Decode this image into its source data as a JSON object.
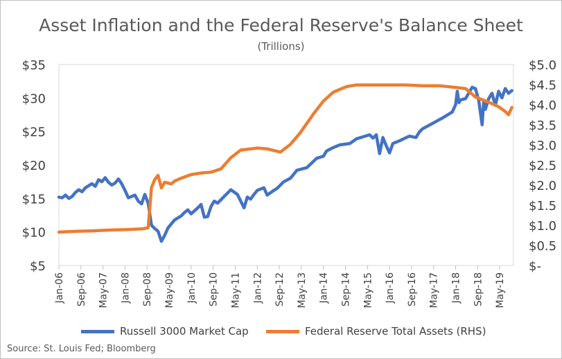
{
  "chart_data": {
    "type": "line",
    "title": "Asset Inflation and the Federal Reserve's Balance Sheet",
    "subtitle": "(Trillions)",
    "source": "Source: St. Louis Fed; Bloomberg",
    "x_tick_labels": [
      "Jan-06",
      "Sep-06",
      "May-07",
      "Jan-08",
      "Sep-08",
      "May-09",
      "Jan-10",
      "Sep-10",
      "May-11",
      "Jan-12",
      "Sep-12",
      "May-13",
      "Jan-14",
      "Sep-14",
      "May-15",
      "Jan-16",
      "Sep-16",
      "May-17",
      "Jan-18",
      "Sep-18",
      "May-19"
    ],
    "x_range": [
      2006.0,
      2019.75
    ],
    "y_left": {
      "ticks": [
        5,
        10,
        15,
        20,
        25,
        30,
        35
      ],
      "labels": [
        "$5",
        "$10",
        "$15",
        "$20",
        "$25",
        "$30",
        "$35"
      ],
      "ylim": [
        5,
        35
      ]
    },
    "y_right": {
      "ticks": [
        0,
        0.5,
        1.0,
        1.5,
        2.0,
        2.5,
        3.0,
        3.5,
        4.0,
        4.5,
        5.0
      ],
      "labels": [
        "$-",
        "$0.5",
        "$1.0",
        "$1.5",
        "$2.0",
        "$2.5",
        "$3.0",
        "$3.5",
        "$4.0",
        "$4.5",
        "$5.0"
      ],
      "ylim": [
        0,
        5
      ]
    },
    "grid": false,
    "legend_position": "bottom",
    "series": [
      {
        "name": "Russell 3000 Market Cap",
        "axis": "left",
        "color": "#4472c4",
        "x": [
          2006.0,
          2006.1,
          2006.2,
          2006.3,
          2006.4,
          2006.5,
          2006.6,
          2006.7,
          2006.8,
          2006.9,
          2007.0,
          2007.1,
          2007.2,
          2007.3,
          2007.4,
          2007.5,
          2007.6,
          2007.7,
          2007.8,
          2007.9,
          2008.0,
          2008.1,
          2008.2,
          2008.3,
          2008.4,
          2008.5,
          2008.6,
          2008.7,
          2008.8,
          2008.9,
          2009.0,
          2009.1,
          2009.2,
          2009.3,
          2009.4,
          2009.5,
          2009.6,
          2009.7,
          2009.8,
          2009.9,
          2010.0,
          2010.2,
          2010.3,
          2010.4,
          2010.5,
          2010.6,
          2010.7,
          2010.8,
          2011.0,
          2011.2,
          2011.4,
          2011.6,
          2011.7,
          2011.8,
          2011.9,
          2012.0,
          2012.2,
          2012.3,
          2012.5,
          2012.6,
          2012.8,
          2013.0,
          2013.2,
          2013.5,
          2013.8,
          2014.0,
          2014.1,
          2014.3,
          2014.5,
          2014.8,
          2015.0,
          2015.2,
          2015.4,
          2015.5,
          2015.6,
          2015.7,
          2015.8,
          2015.9,
          2016.0,
          2016.1,
          2016.3,
          2016.6,
          2016.8,
          2016.9,
          2017.0,
          2017.3,
          2017.6,
          2017.9,
          2018.0,
          2018.05,
          2018.1,
          2018.15,
          2018.3,
          2018.5,
          2018.6,
          2018.7,
          2018.8,
          2018.85,
          2018.9,
          2019.0,
          2019.1,
          2019.2,
          2019.3,
          2019.4,
          2019.5,
          2019.6,
          2019.7
        ],
        "values": [
          15.2,
          15.1,
          15.5,
          15.0,
          15.3,
          15.9,
          16.3,
          16.0,
          16.6,
          16.9,
          17.2,
          16.8,
          17.8,
          17.5,
          18.1,
          17.4,
          17.0,
          17.3,
          17.9,
          17.2,
          16.2,
          15.1,
          15.3,
          15.5,
          14.6,
          14.2,
          15.6,
          14.3,
          11.0,
          10.5,
          10.1,
          8.6,
          9.5,
          10.6,
          11.2,
          11.8,
          12.1,
          12.4,
          12.9,
          13.3,
          12.7,
          13.6,
          14.1,
          12.2,
          12.3,
          13.8,
          14.6,
          14.3,
          15.3,
          16.3,
          15.6,
          13.6,
          15.2,
          14.9,
          15.6,
          16.2,
          16.6,
          15.5,
          16.2,
          16.5,
          17.5,
          18.0,
          19.2,
          19.6,
          21.0,
          21.3,
          22.1,
          22.6,
          23.0,
          23.2,
          23.9,
          24.2,
          24.5,
          24.0,
          24.5,
          21.7,
          24.1,
          22.9,
          21.8,
          23.2,
          23.6,
          24.3,
          24.1,
          24.9,
          25.4,
          26.2,
          27.0,
          27.9,
          29.0,
          31.0,
          29.3,
          29.7,
          29.9,
          31.6,
          31.4,
          29.6,
          26.0,
          29.5,
          28.3,
          29.9,
          30.7,
          28.9,
          31.0,
          30.0,
          31.4,
          30.7,
          31.1
        ]
      },
      {
        "name": "Federal Reserve Total Assets (RHS)",
        "axis": "right",
        "color": "#ed7d31",
        "x": [
          2006.0,
          2006.5,
          2007.0,
          2007.5,
          2008.0,
          2008.5,
          2008.6,
          2008.7,
          2008.8,
          2008.9,
          2009.0,
          2009.1,
          2009.2,
          2009.4,
          2009.5,
          2009.7,
          2010.0,
          2010.3,
          2010.6,
          2010.9,
          2011.2,
          2011.5,
          2011.8,
          2012.0,
          2012.3,
          2012.7,
          2013.0,
          2013.3,
          2013.7,
          2014.0,
          2014.3,
          2014.7,
          2015.0,
          2015.5,
          2016.0,
          2016.5,
          2017.0,
          2017.5,
          2018.0,
          2018.3,
          2018.6,
          2019.0,
          2019.3,
          2019.5,
          2019.6,
          2019.7
        ],
        "values": [
          0.83,
          0.85,
          0.86,
          0.88,
          0.89,
          0.91,
          0.92,
          0.94,
          1.94,
          2.14,
          2.24,
          1.93,
          2.07,
          2.03,
          2.1,
          2.17,
          2.26,
          2.3,
          2.32,
          2.4,
          2.68,
          2.87,
          2.9,
          2.92,
          2.9,
          2.82,
          3.01,
          3.3,
          3.77,
          4.09,
          4.31,
          4.45,
          4.49,
          4.49,
          4.49,
          4.49,
          4.47,
          4.47,
          4.43,
          4.4,
          4.19,
          4.06,
          3.95,
          3.83,
          3.75,
          3.93
        ]
      }
    ]
  }
}
